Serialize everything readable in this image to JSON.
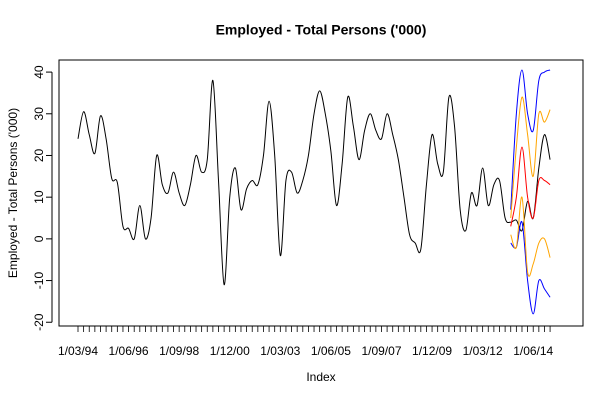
{
  "chart_data": {
    "type": "line",
    "title": "Employed - Total Persons ('000)",
    "x_label": "Index",
    "y_label": "Employed - Total Persons ('000)",
    "categories": [
      "1/03/94",
      null,
      null,
      null,
      null,
      null,
      null,
      null,
      null,
      "1/06/96",
      null,
      null,
      null,
      null,
      null,
      null,
      null,
      null,
      "1/09/98",
      null,
      null,
      null,
      null,
      null,
      null,
      null,
      null,
      "1/12/00",
      null,
      null,
      null,
      null,
      null,
      null,
      null,
      null,
      "1/03/03",
      null,
      null,
      null,
      null,
      null,
      null,
      null,
      null,
      "1/06/05",
      null,
      null,
      null,
      null,
      null,
      null,
      null,
      null,
      "1/09/07",
      null,
      null,
      null,
      null,
      null,
      null,
      null,
      null,
      "1/12/09",
      null,
      null,
      null,
      null,
      null,
      null,
      null,
      null,
      "1/03/12",
      null,
      null,
      null,
      null,
      null,
      null,
      null,
      null,
      "1/06/14",
      null,
      null,
      null
    ],
    "series": [
      {
        "color": "#000000",
        "values": [
          24,
          30.5,
          25,
          20.5,
          29.5,
          24,
          14.5,
          13.5,
          3,
          2.5,
          0,
          8,
          0,
          5,
          20,
          13,
          11,
          16,
          11,
          8,
          13,
          20,
          16,
          19,
          38,
          14,
          -11,
          10,
          17,
          7,
          12,
          14,
          13,
          20,
          33,
          20,
          -4,
          14,
          16,
          11,
          14,
          20,
          30,
          35.5,
          30,
          21,
          8,
          18,
          34,
          27,
          19,
          26,
          30,
          26,
          24,
          30,
          25,
          19,
          10,
          1,
          -1,
          -2.5,
          13,
          25,
          18,
          16,
          34,
          27,
          7,
          2,
          11,
          8,
          17,
          8,
          13,
          14,
          5,
          4,
          4.5,
          2,
          9,
          5,
          17,
          25,
          19
        ]
      },
      {
        "color": "#0000ff",
        "values": [
          null,
          null,
          null,
          null,
          null,
          null,
          null,
          null,
          null,
          null,
          null,
          null,
          null,
          null,
          null,
          null,
          null,
          null,
          null,
          null,
          null,
          null,
          null,
          null,
          null,
          null,
          null,
          null,
          null,
          null,
          null,
          null,
          null,
          null,
          null,
          null,
          null,
          null,
          null,
          null,
          null,
          null,
          null,
          null,
          null,
          null,
          null,
          null,
          null,
          null,
          null,
          null,
          null,
          null,
          null,
          null,
          null,
          null,
          null,
          null,
          null,
          null,
          null,
          null,
          null,
          null,
          null,
          null,
          null,
          null,
          null,
          null,
          null,
          null,
          null,
          null,
          null,
          7,
          30,
          40.5,
          30,
          26,
          38,
          40,
          40.5
        ]
      },
      {
        "color": "#0000ff",
        "values": [
          null,
          null,
          null,
          null,
          null,
          null,
          null,
          null,
          null,
          null,
          null,
          null,
          null,
          null,
          null,
          null,
          null,
          null,
          null,
          null,
          null,
          null,
          null,
          null,
          null,
          null,
          null,
          null,
          null,
          null,
          null,
          null,
          null,
          null,
          null,
          null,
          null,
          null,
          null,
          null,
          null,
          null,
          null,
          null,
          null,
          null,
          null,
          null,
          null,
          null,
          null,
          null,
          null,
          null,
          null,
          null,
          null,
          null,
          null,
          null,
          null,
          null,
          null,
          null,
          null,
          null,
          null,
          null,
          null,
          null,
          null,
          null,
          null,
          null,
          null,
          null,
          null,
          -1,
          -2,
          4,
          -10,
          -18,
          -10,
          -12,
          -14
        ]
      },
      {
        "color": "#ffa500",
        "values": [
          null,
          null,
          null,
          null,
          null,
          null,
          null,
          null,
          null,
          null,
          null,
          null,
          null,
          null,
          null,
          null,
          null,
          null,
          null,
          null,
          null,
          null,
          null,
          null,
          null,
          null,
          null,
          null,
          null,
          null,
          null,
          null,
          null,
          null,
          null,
          null,
          null,
          null,
          null,
          null,
          null,
          null,
          null,
          null,
          null,
          null,
          null,
          null,
          null,
          null,
          null,
          null,
          null,
          null,
          null,
          null,
          null,
          null,
          null,
          null,
          null,
          null,
          null,
          null,
          null,
          null,
          null,
          null,
          null,
          null,
          null,
          null,
          null,
          null,
          null,
          null,
          null,
          5,
          22,
          34,
          25,
          15,
          30,
          28,
          31
        ]
      },
      {
        "color": "#ffa500",
        "values": [
          null,
          null,
          null,
          null,
          null,
          null,
          null,
          null,
          null,
          null,
          null,
          null,
          null,
          null,
          null,
          null,
          null,
          null,
          null,
          null,
          null,
          null,
          null,
          null,
          null,
          null,
          null,
          null,
          null,
          null,
          null,
          null,
          null,
          null,
          null,
          null,
          null,
          null,
          null,
          null,
          null,
          null,
          null,
          null,
          null,
          null,
          null,
          null,
          null,
          null,
          null,
          null,
          null,
          null,
          null,
          null,
          null,
          null,
          null,
          null,
          null,
          null,
          null,
          null,
          null,
          null,
          null,
          null,
          null,
          null,
          null,
          null,
          null,
          null,
          null,
          null,
          null,
          1,
          -2,
          10,
          -8,
          -6,
          -1,
          0,
          -4.5
        ]
      },
      {
        "color": "#ff0000",
        "values": [
          null,
          null,
          null,
          null,
          null,
          null,
          null,
          null,
          null,
          null,
          null,
          null,
          null,
          null,
          null,
          null,
          null,
          null,
          null,
          null,
          null,
          null,
          null,
          null,
          null,
          null,
          null,
          null,
          null,
          null,
          null,
          null,
          null,
          null,
          null,
          null,
          null,
          null,
          null,
          null,
          null,
          null,
          null,
          null,
          null,
          null,
          null,
          null,
          null,
          null,
          null,
          null,
          null,
          null,
          null,
          null,
          null,
          null,
          null,
          null,
          null,
          null,
          null,
          null,
          null,
          null,
          null,
          null,
          null,
          null,
          null,
          null,
          null,
          null,
          null,
          null,
          null,
          3,
          10,
          22,
          10,
          5,
          14,
          14,
          13
        ]
      }
    ],
    "ylim": [
      -20.9,
      42.9
    ],
    "yticks": [
      -20,
      -10,
      0,
      10,
      20,
      30,
      40
    ]
  }
}
